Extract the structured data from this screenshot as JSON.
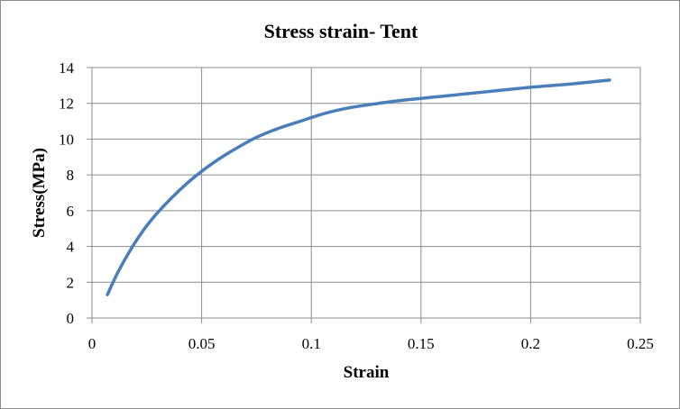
{
  "chart_data": {
    "type": "line",
    "title": "Stress strain- Tent",
    "xlabel": "Strain",
    "ylabel": "Stress(MPa)",
    "xlim": [
      0,
      0.25
    ],
    "ylim": [
      0,
      14
    ],
    "x_ticks": [
      "0",
      "0.05",
      "0.1",
      "0.15",
      "0.2",
      "0.25"
    ],
    "y_ticks": [
      "0",
      "2",
      "4",
      "6",
      "8",
      "10",
      "12",
      "14"
    ],
    "grid": true,
    "legend": "none",
    "series": [
      {
        "color": "#4a7ebb",
        "x": [
          0.007,
          0.012,
          0.018,
          0.024,
          0.03,
          0.037,
          0.044,
          0.05,
          0.058,
          0.066,
          0.075,
          0.085,
          0.095,
          0.105,
          0.115,
          0.125,
          0.14,
          0.16,
          0.18,
          0.2,
          0.22,
          0.236
        ],
        "y": [
          1.3,
          2.6,
          3.9,
          5.0,
          5.9,
          6.8,
          7.6,
          8.2,
          8.9,
          9.5,
          10.1,
          10.6,
          11.0,
          11.4,
          11.7,
          11.9,
          12.15,
          12.4,
          12.65,
          12.9,
          13.1,
          13.3
        ]
      }
    ]
  }
}
